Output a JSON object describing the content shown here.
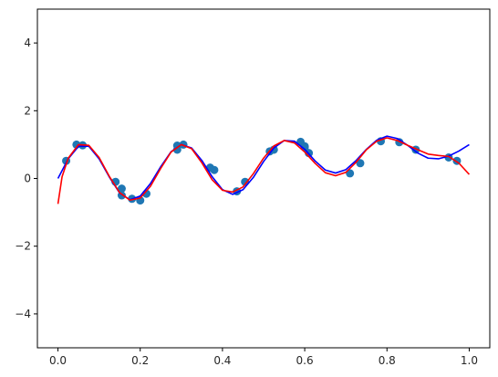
{
  "chart_data": {
    "type": "scatter",
    "title": "",
    "xlabel": "",
    "ylabel": "",
    "xlim": [
      -0.05,
      1.05
    ],
    "ylim": [
      -5,
      5
    ],
    "x_ticks": [
      0.0,
      0.2,
      0.4,
      0.6,
      0.8,
      1.0
    ],
    "x_tick_labels": [
      "0.0",
      "0.2",
      "0.4",
      "0.6",
      "0.8",
      "1.0"
    ],
    "y_ticks": [
      -4,
      -2,
      0,
      2,
      4
    ],
    "y_tick_labels": [
      "−4",
      "−2",
      "0",
      "2",
      "4"
    ],
    "grid": false,
    "legend": "none",
    "series": [
      {
        "kind": "scatter",
        "color": "#1f77b4",
        "points": [
          [
            0.02,
            0.52
          ],
          [
            0.045,
            1.0
          ],
          [
            0.06,
            0.98
          ],
          [
            0.14,
            -0.1
          ],
          [
            0.155,
            -0.3
          ],
          [
            0.155,
            -0.5
          ],
          [
            0.18,
            -0.6
          ],
          [
            0.2,
            -0.65
          ],
          [
            0.215,
            -0.45
          ],
          [
            0.29,
            0.85
          ],
          [
            0.29,
            0.97
          ],
          [
            0.305,
            1.0
          ],
          [
            0.37,
            0.32
          ],
          [
            0.38,
            0.25
          ],
          [
            0.435,
            -0.38
          ],
          [
            0.455,
            -0.1
          ],
          [
            0.515,
            0.8
          ],
          [
            0.525,
            0.85
          ],
          [
            0.59,
            1.08
          ],
          [
            0.6,
            0.95
          ],
          [
            0.6,
            0.92
          ],
          [
            0.61,
            0.75
          ],
          [
            0.71,
            0.15
          ],
          [
            0.735,
            0.45
          ],
          [
            0.785,
            1.1
          ],
          [
            0.83,
            1.07
          ],
          [
            0.87,
            0.85
          ],
          [
            0.95,
            0.62
          ],
          [
            0.97,
            0.52
          ]
        ]
      },
      {
        "kind": "line",
        "color": "#0000ff",
        "x": [
          0,
          0.025,
          0.05,
          0.075,
          0.1,
          0.125,
          0.15,
          0.175,
          0.2,
          0.225,
          0.25,
          0.275,
          0.3,
          0.325,
          0.35,
          0.375,
          0.4,
          0.425,
          0.45,
          0.475,
          0.5,
          0.525,
          0.55,
          0.575,
          0.6,
          0.625,
          0.65,
          0.675,
          0.7,
          0.725,
          0.75,
          0.775,
          0.8,
          0.825,
          0.85,
          0.875,
          0.9,
          0.925,
          0.95,
          0.975,
          1.0
        ],
        "y": [
          0.0,
          0.58,
          0.95,
          0.95,
          0.58,
          0.04,
          -0.43,
          -0.63,
          -0.52,
          -0.15,
          0.35,
          0.79,
          1.0,
          0.9,
          0.53,
          0.05,
          -0.33,
          -0.47,
          -0.33,
          0.03,
          0.5,
          0.9,
          1.12,
          1.1,
          0.86,
          0.52,
          0.25,
          0.16,
          0.26,
          0.53,
          0.86,
          1.13,
          1.25,
          1.18,
          0.98,
          0.75,
          0.6,
          0.58,
          0.66,
          0.81,
          1.0
        ]
      },
      {
        "kind": "line",
        "color": "#ff0000",
        "x": [
          0,
          0.01,
          0.025,
          0.05,
          0.075,
          0.1,
          0.125,
          0.15,
          0.175,
          0.2,
          0.225,
          0.25,
          0.275,
          0.3,
          0.325,
          0.35,
          0.375,
          0.4,
          0.425,
          0.45,
          0.475,
          0.5,
          0.525,
          0.55,
          0.575,
          0.6,
          0.625,
          0.65,
          0.675,
          0.7,
          0.725,
          0.75,
          0.775,
          0.8,
          0.825,
          0.85,
          0.875,
          0.9,
          0.925,
          0.95,
          0.975,
          1.0
        ],
        "y": [
          -0.75,
          0.05,
          0.6,
          1.0,
          0.98,
          0.62,
          0.06,
          -0.42,
          -0.64,
          -0.58,
          -0.23,
          0.3,
          0.78,
          1.0,
          0.88,
          0.46,
          -0.04,
          -0.35,
          -0.4,
          -0.25,
          0.14,
          0.6,
          0.96,
          1.12,
          1.05,
          0.78,
          0.45,
          0.17,
          0.08,
          0.18,
          0.48,
          0.85,
          1.1,
          1.2,
          1.12,
          0.98,
          0.85,
          0.72,
          0.68,
          0.65,
          0.45,
          0.12
        ]
      }
    ]
  }
}
